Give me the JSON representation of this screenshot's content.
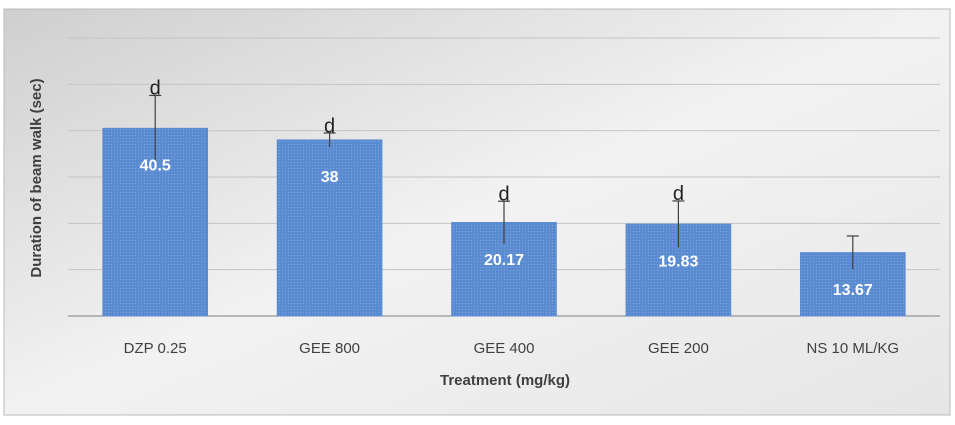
{
  "chart_data": {
    "type": "bar",
    "categories": [
      "DZP 0.25",
      "GEE 800",
      "GEE 400",
      "GEE 200",
      "NS 10 ML/KG"
    ],
    "values": [
      40.5,
      38,
      20.17,
      19.83,
      13.67
    ],
    "errors": [
      7.1,
      1.5,
      4.6,
      5.0,
      3.6
    ],
    "letters": [
      "d",
      "d",
      "d",
      "d"
    ],
    "color": "#5a8bd0",
    "x_label": "Treatment (mg/kg)",
    "y_label": "Duration of beam walk (sec)",
    "ylim": [
      0,
      60
    ],
    "yticks": [
      0,
      10,
      20,
      30,
      40,
      50,
      60
    ],
    "grid": true
  }
}
